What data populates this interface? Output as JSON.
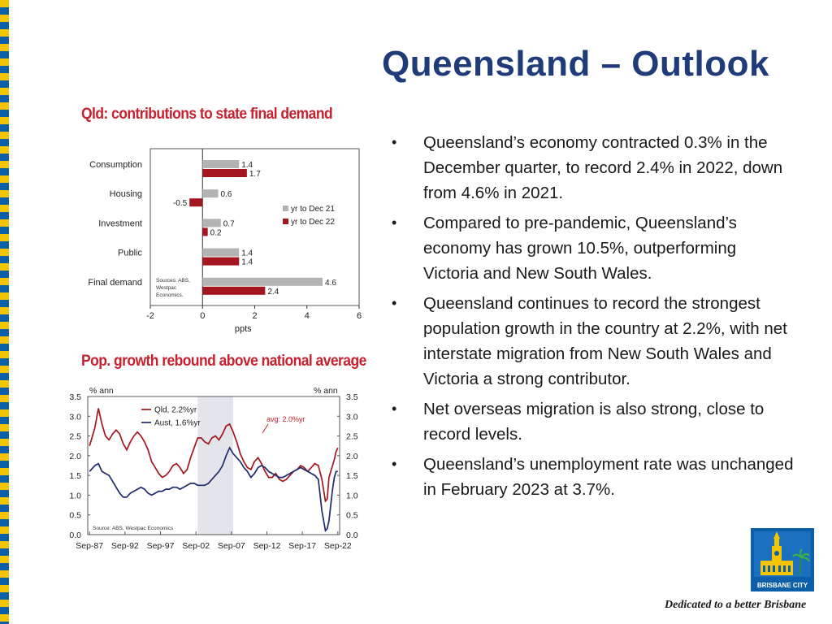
{
  "slide": {
    "title": "Queensland – Outlook",
    "tagline": "Dedicated to a better Brisbane",
    "logo_label": "BRISBANE CITY"
  },
  "colors": {
    "title": "#1f3b7a",
    "chart_title": "#c8202e",
    "border_yellow": "#f2c500",
    "border_blue": "#0b5fa8",
    "bar_grey": "#b3b3b3",
    "bar_red": "#a3161f",
    "line_qld": "#a3161f",
    "line_aust": "#1f2a6b"
  },
  "bullets": [
    "Queensland’s economy contracted 0.3% in the December quarter, to record 2.4% in 2022, down from 4.6% in 2021.",
    "Compared to pre-pandemic, Queensland’s economy has grown 10.5%, outperforming Victoria and New South Wales.",
    "Queensland continues to record the strongest population growth in the country at 2.2%, with net interstate migration from New South Wales and Victoria a strong contributor.",
    "Net overseas migration is also strong, close to record levels.",
    "Queensland’s unemployment rate was unchanged in February 2023 at 3.7%."
  ],
  "chart_data": [
    {
      "type": "bar",
      "orientation": "horizontal",
      "title": "Qld: contributions to state final demand",
      "categories": [
        "Consumption",
        "Housing",
        "Investment",
        "Public",
        "Final demand"
      ],
      "series": [
        {
          "name": "yr to Dec 21",
          "color": "#b3b3b3",
          "values": [
            1.4,
            0.6,
            0.7,
            1.4,
            4.6
          ],
          "labels": [
            "1.4",
            "0.6",
            "0.7",
            "1.4",
            "4.6"
          ]
        },
        {
          "name": "yr to Dec 22",
          "color": "#a3161f",
          "values": [
            1.7,
            -0.5,
            0.2,
            1.4,
            2.4
          ],
          "labels": [
            "1.7",
            "-0.5",
            "0.2",
            "1.4",
            "2.4"
          ]
        }
      ],
      "xlabel": "ppts",
      "xlim": [
        -2,
        6
      ],
      "xticks": [
        -2,
        0,
        2,
        4,
        6
      ],
      "legend": "right",
      "note": "Sources: ABS, Westpac Economics."
    },
    {
      "type": "line",
      "title": "Pop. growth rebound above national average",
      "ylabel_left": "% ann",
      "ylabel_right": "% ann",
      "ylim": [
        0.0,
        3.5
      ],
      "yticks": [
        "0.0",
        "0.5",
        "1.0",
        "1.5",
        "2.0",
        "2.5",
        "3.0",
        "3.5"
      ],
      "xlim": [
        1987.5,
        2023.0
      ],
      "xticks": [
        "Sep-87",
        "Sep-92",
        "Sep-97",
        "Sep-02",
        "Sep-07",
        "Sep-12",
        "Sep-17",
        "Sep-22"
      ],
      "shaded_period": [
        2003.0,
        2008.0
      ],
      "annotation": "avg: 2.0%yr",
      "legend": "top-left",
      "note": "Source: ABS, Westpac Economics",
      "series": [
        {
          "name": "Qld, 2.2%yr",
          "color": "#a3161f",
          "x": [
            1987.75,
            1988.5,
            1989.0,
            1989.5,
            1990.0,
            1990.5,
            1991.0,
            1991.5,
            1992.0,
            1992.5,
            1993.0,
            1993.5,
            1994.0,
            1994.5,
            1995.0,
            1995.5,
            1996.0,
            1996.5,
            1997.0,
            1997.5,
            1998.0,
            1998.5,
            1999.0,
            1999.5,
            2000.0,
            2000.5,
            2001.0,
            2001.5,
            2002.0,
            2002.5,
            2003.0,
            2003.5,
            2004.0,
            2004.5,
            2005.0,
            2005.5,
            2006.0,
            2006.5,
            2007.0,
            2007.5,
            2008.0,
            2008.5,
            2009.0,
            2009.5,
            2010.0,
            2010.5,
            2011.0,
            2011.5,
            2012.0,
            2012.5,
            2013.0,
            2013.5,
            2014.0,
            2014.5,
            2015.0,
            2015.5,
            2016.0,
            2016.5,
            2017.0,
            2017.5,
            2018.0,
            2018.5,
            2019.0,
            2019.5,
            2020.0,
            2020.5,
            2021.0,
            2021.25,
            2021.5,
            2021.75,
            2022.0,
            2022.25,
            2022.5,
            2022.75
          ],
          "y": [
            2.25,
            2.7,
            3.2,
            2.8,
            2.5,
            2.4,
            2.55,
            2.65,
            2.55,
            2.3,
            2.15,
            2.35,
            2.5,
            2.6,
            2.5,
            2.35,
            2.15,
            1.85,
            1.7,
            1.55,
            1.45,
            1.5,
            1.6,
            1.75,
            1.8,
            1.7,
            1.55,
            1.65,
            1.95,
            2.2,
            2.45,
            2.45,
            2.35,
            2.3,
            2.45,
            2.5,
            2.4,
            2.55,
            2.75,
            2.8,
            2.6,
            2.35,
            2.05,
            1.85,
            1.7,
            1.65,
            1.85,
            1.95,
            1.8,
            1.6,
            1.45,
            1.45,
            1.55,
            1.4,
            1.35,
            1.4,
            1.5,
            1.6,
            1.65,
            1.75,
            1.7,
            1.6,
            1.7,
            1.8,
            1.75,
            1.4,
            0.85,
            0.9,
            1.45,
            1.6,
            1.75,
            1.9,
            2.1,
            2.2
          ]
        },
        {
          "name": "Aust, 1.6%yr",
          "color": "#1f2a6b",
          "x": [
            1987.75,
            1988.5,
            1989.0,
            1989.5,
            1990.0,
            1990.5,
            1991.0,
            1991.5,
            1992.0,
            1992.5,
            1993.0,
            1993.5,
            1994.0,
            1994.5,
            1995.0,
            1995.5,
            1996.0,
            1996.5,
            1997.0,
            1997.5,
            1998.0,
            1998.5,
            1999.0,
            1999.5,
            2000.0,
            2000.5,
            2001.0,
            2001.5,
            2002.0,
            2002.5,
            2003.0,
            2003.5,
            2004.0,
            2004.5,
            2005.0,
            2005.5,
            2006.0,
            2006.5,
            2007.0,
            2007.5,
            2008.0,
            2008.5,
            2009.0,
            2009.5,
            2010.0,
            2010.5,
            2011.0,
            2011.5,
            2012.0,
            2012.5,
            2013.0,
            2013.5,
            2014.0,
            2014.5,
            2015.0,
            2015.5,
            2016.0,
            2016.5,
            2017.0,
            2017.5,
            2018.0,
            2018.5,
            2019.0,
            2019.5,
            2020.0,
            2020.5,
            2021.0,
            2021.25,
            2021.5,
            2021.75,
            2022.0,
            2022.25,
            2022.5,
            2022.75
          ],
          "y": [
            1.6,
            1.75,
            1.8,
            1.6,
            1.55,
            1.5,
            1.35,
            1.2,
            1.05,
            0.95,
            0.95,
            1.05,
            1.1,
            1.15,
            1.2,
            1.15,
            1.05,
            1.0,
            1.05,
            1.1,
            1.1,
            1.15,
            1.15,
            1.2,
            1.2,
            1.15,
            1.2,
            1.25,
            1.3,
            1.3,
            1.25,
            1.25,
            1.25,
            1.3,
            1.4,
            1.5,
            1.6,
            1.75,
            2.0,
            2.2,
            2.05,
            1.95,
            1.85,
            1.7,
            1.6,
            1.45,
            1.55,
            1.7,
            1.75,
            1.7,
            1.6,
            1.55,
            1.5,
            1.45,
            1.45,
            1.5,
            1.55,
            1.6,
            1.65,
            1.7,
            1.65,
            1.6,
            1.55,
            1.5,
            1.4,
            0.6,
            0.1,
            0.15,
            0.35,
            0.75,
            1.15,
            1.45,
            1.6,
            1.6
          ]
        }
      ]
    }
  ]
}
